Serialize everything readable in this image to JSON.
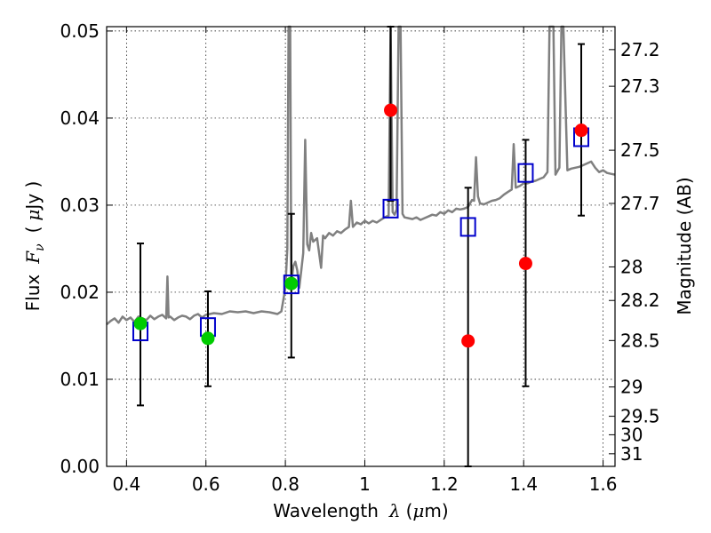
{
  "chart_data": {
    "type": "scatter",
    "xlabel_text": "Wavelength",
    "xlabel_symbol": "λ",
    "xlabel_unit_open": "(",
    "xlabel_unit_mu": "μ",
    "xlabel_unit_rest": "m)",
    "ylabel_text": "Flux",
    "ylabel_symbol": "F",
    "ylabel_sub": "ν",
    "ylabel_unit_open": "(",
    "ylabel_unit_mu": "μ",
    "ylabel_unit_rest": "Jy )",
    "y2label": "Magnitude (AB)",
    "xlim": [
      0.35,
      1.63
    ],
    "ylim": [
      0.0,
      0.0505
    ],
    "x_ticks": [
      0.4,
      0.6,
      0.8,
      1.0,
      1.2,
      1.4,
      1.6
    ],
    "x_tick_labels": [
      "0.4",
      "0.6",
      "0.8",
      "1",
      "1.2",
      "1.4",
      "1.6"
    ],
    "y_ticks": [
      0.0,
      0.01,
      0.02,
      0.03,
      0.04,
      0.05
    ],
    "y_tick_labels": [
      "0.00",
      "0.01",
      "0.02",
      "0.03",
      "0.04",
      "0.05"
    ],
    "y2_ticks": [
      27.2,
      27.3,
      27.5,
      27.7,
      28,
      28.2,
      28.5,
      29,
      29.5,
      30,
      31
    ],
    "y2_tick_labels": [
      "27.2",
      "27.3",
      "27.5",
      "27.7",
      "28",
      "28.2",
      "28.5",
      "29",
      "29.5",
      "30",
      "31"
    ],
    "grid": true,
    "colors": {
      "spectrum": "#808080",
      "model_square": "#0000cc",
      "ground_based": "#00cc00",
      "hst": "#ff0000",
      "errorbar": "#000000"
    },
    "model_squares": {
      "x": [
        0.435,
        0.605,
        0.815,
        1.065,
        1.26,
        1.405,
        1.545
      ],
      "y": [
        0.0155,
        0.016,
        0.0209,
        0.0296,
        0.0275,
        0.0337,
        0.0378
      ]
    },
    "errorbars": [
      {
        "x": 0.435,
        "low": 0.007,
        "high": 0.0256
      },
      {
        "x": 0.605,
        "low": 0.0092,
        "high": 0.0201
      },
      {
        "x": 0.815,
        "low": 0.0125,
        "high": 0.029
      },
      {
        "x": 1.065,
        "low": 0.0305,
        "high": 0.0505
      },
      {
        "x": 1.26,
        "low": 0.0,
        "high": 0.032
      },
      {
        "x": 1.405,
        "low": 0.0092,
        "high": 0.0375
      },
      {
        "x": 1.545,
        "low": 0.0288,
        "high": 0.0485
      }
    ],
    "green_points": {
      "x": [
        0.435,
        0.605,
        0.815
      ],
      "y": [
        0.0164,
        0.0147,
        0.021
      ]
    },
    "red_points": {
      "x": [
        1.065,
        1.26,
        1.405,
        1.545
      ],
      "y": [
        0.0409,
        0.0144,
        0.0233,
        0.0386
      ]
    },
    "spectrum": [
      [
        0.35,
        0.0163
      ],
      [
        0.36,
        0.0167
      ],
      [
        0.37,
        0.017
      ],
      [
        0.38,
        0.0165
      ],
      [
        0.39,
        0.0172
      ],
      [
        0.4,
        0.0168
      ],
      [
        0.41,
        0.0171
      ],
      [
        0.42,
        0.0166
      ],
      [
        0.43,
        0.0172
      ],
      [
        0.44,
        0.017
      ],
      [
        0.45,
        0.0168
      ],
      [
        0.46,
        0.0173
      ],
      [
        0.47,
        0.0169
      ],
      [
        0.48,
        0.0172
      ],
      [
        0.49,
        0.0174
      ],
      [
        0.5,
        0.017
      ],
      [
        0.503,
        0.0218
      ],
      [
        0.506,
        0.0171
      ],
      [
        0.51,
        0.0172
      ],
      [
        0.52,
        0.0168
      ],
      [
        0.53,
        0.0171
      ],
      [
        0.54,
        0.0173
      ],
      [
        0.55,
        0.0172
      ],
      [
        0.56,
        0.0169
      ],
      [
        0.57,
        0.0173
      ],
      [
        0.58,
        0.0175
      ],
      [
        0.59,
        0.0171
      ],
      [
        0.6,
        0.0174
      ],
      [
        0.62,
        0.0176
      ],
      [
        0.64,
        0.0175
      ],
      [
        0.66,
        0.0178
      ],
      [
        0.68,
        0.0177
      ],
      [
        0.7,
        0.0178
      ],
      [
        0.72,
        0.0176
      ],
      [
        0.74,
        0.0178
      ],
      [
        0.76,
        0.0177
      ],
      [
        0.78,
        0.0175
      ],
      [
        0.79,
        0.0178
      ],
      [
        0.8,
        0.0205
      ],
      [
        0.805,
        0.025
      ],
      [
        0.808,
        0.0505
      ],
      [
        0.812,
        0.0505
      ],
      [
        0.815,
        0.021
      ],
      [
        0.82,
        0.023
      ],
      [
        0.825,
        0.0235
      ],
      [
        0.83,
        0.0225
      ],
      [
        0.835,
        0.0205
      ],
      [
        0.84,
        0.0225
      ],
      [
        0.845,
        0.0245
      ],
      [
        0.85,
        0.0375
      ],
      [
        0.855,
        0.0255
      ],
      [
        0.86,
        0.0248
      ],
      [
        0.865,
        0.0268
      ],
      [
        0.87,
        0.0258
      ],
      [
        0.88,
        0.0262
      ],
      [
        0.89,
        0.0228
      ],
      [
        0.895,
        0.0265
      ],
      [
        0.9,
        0.0262
      ],
      [
        0.91,
        0.0268
      ],
      [
        0.92,
        0.0265
      ],
      [
        0.93,
        0.027
      ],
      [
        0.94,
        0.0268
      ],
      [
        0.95,
        0.0272
      ],
      [
        0.96,
        0.0275
      ],
      [
        0.965,
        0.0305
      ],
      [
        0.97,
        0.0275
      ],
      [
        0.98,
        0.028
      ],
      [
        0.99,
        0.0278
      ],
      [
        1.0,
        0.0282
      ],
      [
        1.01,
        0.0279
      ],
      [
        1.02,
        0.0282
      ],
      [
        1.03,
        0.028
      ],
      [
        1.04,
        0.0283
      ],
      [
        1.05,
        0.0286
      ],
      [
        1.06,
        0.0288
      ],
      [
        1.065,
        0.0505
      ],
      [
        1.07,
        0.0292
      ],
      [
        1.075,
        0.0289
      ],
      [
        1.08,
        0.0295
      ],
      [
        1.085,
        0.0505
      ],
      [
        1.09,
        0.0505
      ],
      [
        1.095,
        0.029
      ],
      [
        1.1,
        0.0286
      ],
      [
        1.11,
        0.0285
      ],
      [
        1.12,
        0.0284
      ],
      [
        1.13,
        0.0286
      ],
      [
        1.14,
        0.0283
      ],
      [
        1.15,
        0.0285
      ],
      [
        1.16,
        0.0287
      ],
      [
        1.17,
        0.0289
      ],
      [
        1.18,
        0.0288
      ],
      [
        1.19,
        0.0292
      ],
      [
        1.2,
        0.029
      ],
      [
        1.21,
        0.0294
      ],
      [
        1.22,
        0.0292
      ],
      [
        1.23,
        0.0296
      ],
      [
        1.24,
        0.0295
      ],
      [
        1.25,
        0.0296
      ],
      [
        1.26,
        0.0298
      ],
      [
        1.27,
        0.0306
      ],
      [
        1.275,
        0.0305
      ],
      [
        1.28,
        0.0355
      ],
      [
        1.285,
        0.031
      ],
      [
        1.29,
        0.0302
      ],
      [
        1.3,
        0.0301
      ],
      [
        1.31,
        0.0303
      ],
      [
        1.32,
        0.0305
      ],
      [
        1.33,
        0.0306
      ],
      [
        1.34,
        0.0308
      ],
      [
        1.35,
        0.0312
      ],
      [
        1.36,
        0.0315
      ],
      [
        1.37,
        0.0318
      ],
      [
        1.375,
        0.037
      ],
      [
        1.38,
        0.032
      ],
      [
        1.39,
        0.0322
      ],
      [
        1.4,
        0.0325
      ],
      [
        1.41,
        0.0325
      ],
      [
        1.42,
        0.0327
      ],
      [
        1.43,
        0.0328
      ],
      [
        1.44,
        0.033
      ],
      [
        1.45,
        0.0332
      ],
      [
        1.46,
        0.0338
      ],
      [
        1.465,
        0.0505
      ],
      [
        1.475,
        0.0505
      ],
      [
        1.48,
        0.0335
      ],
      [
        1.49,
        0.0343
      ],
      [
        1.495,
        0.0505
      ],
      [
        1.5,
        0.0505
      ],
      [
        1.51,
        0.034
      ],
      [
        1.52,
        0.0342
      ],
      [
        1.53,
        0.0343
      ],
      [
        1.54,
        0.0344
      ],
      [
        1.55,
        0.0346
      ],
      [
        1.56,
        0.0348
      ],
      [
        1.57,
        0.035
      ],
      [
        1.58,
        0.0343
      ],
      [
        1.59,
        0.0338
      ],
      [
        1.6,
        0.034
      ],
      [
        1.61,
        0.0337
      ],
      [
        1.62,
        0.0336
      ],
      [
        1.63,
        0.0335
      ]
    ]
  }
}
